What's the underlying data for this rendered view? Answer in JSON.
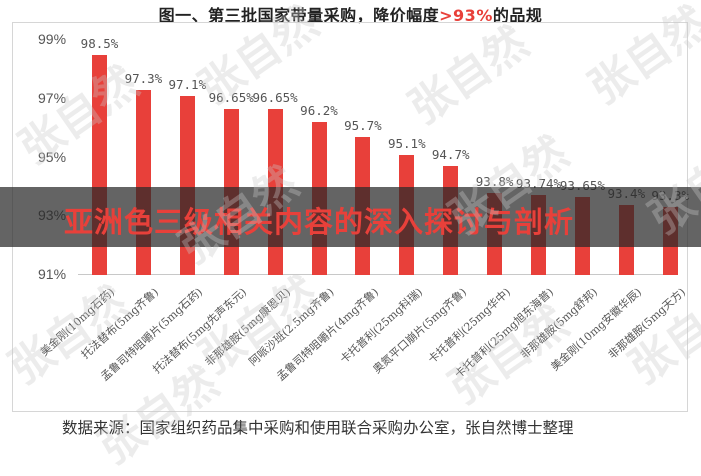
{
  "title": {
    "prefix": "图一、第三批国家带量采购，降价幅度",
    "highlight": ">93%",
    "suffix": "的品规"
  },
  "overlay_text": "亚洲色三级相关内容的深入探讨与剖析",
  "source": "数据来源：国家组织药品集中采购和使用联合采购办公室，张自然博士整理",
  "watermark": "张自然",
  "colors": {
    "bar": "#e8403a",
    "highlight": "#e8403a",
    "overlay": "#282828"
  },
  "chart_data": {
    "type": "bar",
    "title": "图一、第三批国家带量采购，降价幅度>93%的品规",
    "xlabel": "",
    "ylabel": "",
    "ylim": [
      91,
      99
    ],
    "yticks": [
      "99%",
      "97%",
      "95%",
      "93%",
      "91%"
    ],
    "grid": false,
    "legend": "none",
    "categories": [
      "美金刚(10mg石药)",
      "托法替布(5mg齐鲁)",
      "孟鲁司特咀嚼片(5mg石药)",
      "托法替布(5mg先声东元)",
      "非那雄胺(5mg康恩贝)",
      "阿哌沙班(2.5mg齐鲁)",
      "孟鲁司特咀嚼片(4mg齐鲁)",
      "卡托普利(25mg科瑞)",
      "奥氮平口崩片(5mg齐鲁)",
      "卡托普利(25mg华中)",
      "卡托普利(25mg旭东海普)",
      "非那雄胺(5mg舒邦)",
      "美金刚(10mg安徽华辰)",
      "非那雄胺(5mg天方)"
    ],
    "values": [
      98.5,
      97.3,
      97.1,
      96.65,
      96.65,
      96.2,
      95.7,
      95.1,
      94.7,
      93.8,
      93.74,
      93.65,
      93.4,
      93.3
    ],
    "value_labels": [
      "98.5%",
      "97.3%",
      "97.1%",
      "96.65%",
      "96.65%",
      "96.2%",
      "95.7%",
      "95.1%",
      "94.7%",
      "93.8%",
      "93.74%",
      "93.65%",
      "93.4%",
      "93.3%"
    ]
  }
}
